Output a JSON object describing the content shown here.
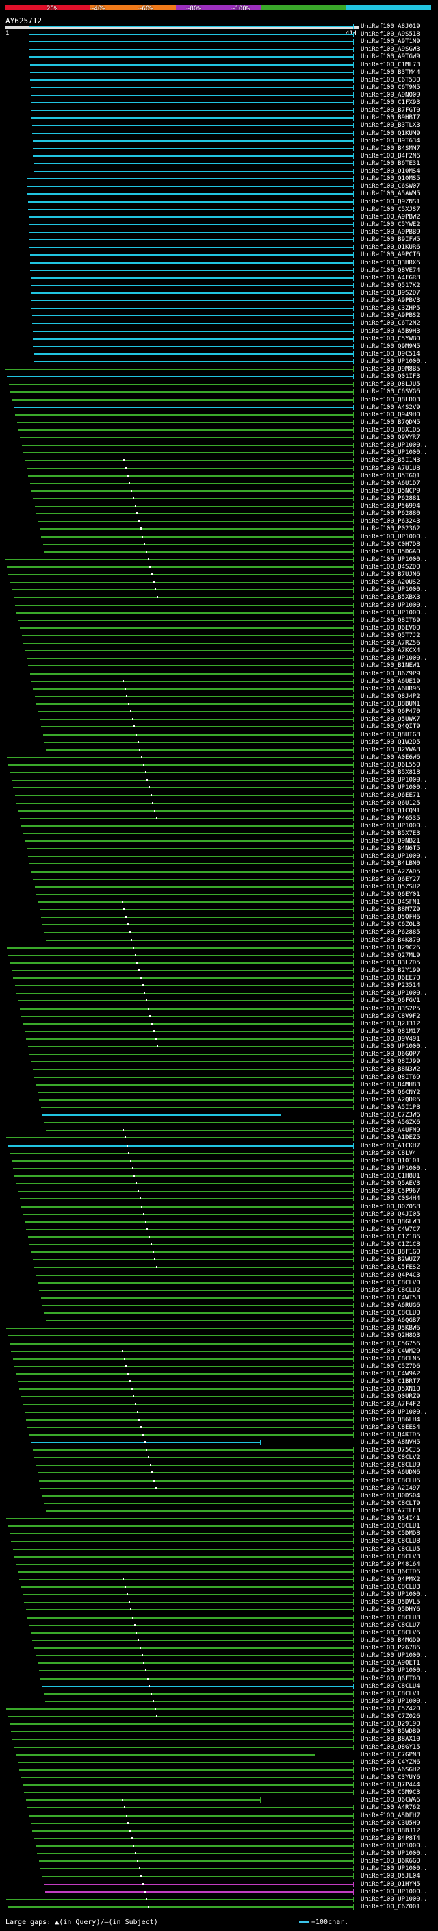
{
  "legend": {
    "segments": [
      {
        "color": "#e0102a"
      },
      {
        "color": "#f07a1a"
      },
      {
        "color": "#9c2fbf"
      },
      {
        "color": "#3aa82a"
      },
      {
        "color": "#21c4e0"
      }
    ],
    "labels": [
      "20%",
      "~40%",
      "~60%",
      "~80%",
      "~100%"
    ]
  },
  "query": {
    "id": "AY625712",
    "start": "1",
    "end": "414"
  },
  "footer": {
    "large_gaps": "Large gaps: ▲(in Query)/—(in Subject)",
    "scale": "=100char."
  },
  "hits": [
    "UniRef100_A8J019",
    "UniRef100_A9S518",
    "UniRef100_A9T1N9",
    "UniRef100_A9SGW3",
    "UniRef100_A9TGW9",
    "UniRef100_C1ML73",
    "UniRef100_B3TM44",
    "UniRef100_C6T530",
    "UniRef100_C6T9N5",
    "UniRef100_A9NQ09",
    "UniRef100_C1FX93",
    "UniRef100_B7FGT0",
    "UniRef100_B9HBT7",
    "UniRef100_B3TLX3",
    "UniRef100_Q1KUM9",
    "UniRef100_B9T634",
    "UniRef100_B4SMM7",
    "UniRef100_B4F2N6",
    "UniRef100_B6TE31",
    "UniRef100_Q10MS4",
    "UniRef100_Q10MS5",
    "UniRef100_C6SW07",
    "UniRef100_A5AWM5",
    "UniRef100_Q9ZNS1",
    "UniRef100_C5XJS7",
    "UniRef100_A9PBW2",
    "UniRef100_C5YWE2",
    "UniRef100_A9PBB9",
    "UniRef100_B9IFW5",
    "UniRef100_Q1KUR6",
    "UniRef100_A9PCT6",
    "UniRef100_Q3HRX6",
    "UniRef100_Q8VE74",
    "UniRef100_A4FGR8",
    "UniRef100_Q517K2",
    "UniRef100_B9S2D7",
    "UniRef100_A9PBV3",
    "UniRef100_C3ZHP5",
    "UniRef100_A9PBS2",
    "UniRef100_C6T2N2",
    "UniRef100_A5B9H3",
    "UniRef100_C5YWB0",
    "UniRef100_Q9M9M5",
    "UniRef100_Q9C514",
    "UniRef100_UP1000..",
    "UniRef100_Q9M8B5",
    "UniRef100_Q01IF3",
    "UniRef100_Q8LJU5",
    "UniRef100_C6SVG6",
    "UniRef100_Q8LDQ3",
    "UniRef100_A4S2V9",
    "UniRef100_Q949H0",
    "UniRef100_B7QDM5",
    "UniRef100_Q8X1Q5",
    "UniRef100_Q9VYR7",
    "UniRef100_UP1000..",
    "UniRef100_UP1000..",
    "UniRef100_B5I1M3",
    "UniRef100_A7U1U8",
    "UniRef100_B5TGQ1",
    "UniRef100_A6U1D7",
    "UniRef100_B5NCP9",
    "UniRef100_P62881",
    "UniRef100_P56994",
    "UniRef100_P62880",
    "UniRef100_P63243",
    "UniRef100_P02362",
    "UniRef100_UP1000..",
    "UniRef100_C0H7D8",
    "UniRef100_B5DGA0",
    "UniRef100_UP1000..",
    "UniRef100_Q4SZD0",
    "UniRef100_B7UJN6",
    "UniRef100_A2QUS2",
    "UniRef100_UP1000..",
    "UniRef100_B5XBX3",
    "UniRef100_UP1000..",
    "UniRef100_UP1000..",
    "UniRef100_Q8IT69",
    "UniRef100_Q6EV00",
    "UniRef100_Q5T7J2",
    "UniRef100_A7RZ56",
    "UniRef100_A7KCX4",
    "UniRef100_UP1000..",
    "UniRef100_B1NEW1",
    "UniRef100_B6Z9P9",
    "UniRef100_A6UE19",
    "UniRef100_A6UR96",
    "UniRef100_Q8J4P2",
    "UniRef100_B8BUN1",
    "UniRef100_Q6P470",
    "UniRef100_Q5UWK7",
    "UniRef100_Q4QIT9",
    "UniRef100_Q8UIG8",
    "UniRef100_Q1W2D5",
    "UniRef100_B2VWA8",
    "UniRef100_A0E6W6",
    "UniRef100_Q6L550",
    "UniRef100_B5X818",
    "UniRef100_UP1000..",
    "UniRef100_UP1000..",
    "UniRef100_Q6EE71",
    "UniRef100_Q6U125",
    "UniRef100_Q1CQM1",
    "UniRef100_P46535",
    "UniRef100_UP1000..",
    "UniRef100_B5X7E3",
    "UniRef100_Q9NB21",
    "UniRef100_B4N6T5",
    "UniRef100_UP1000..",
    "UniRef100_B4LBN0",
    "UniRef100_A2ZAD5",
    "UniRef100_Q6EY27",
    "UniRef100_Q5ZSU2",
    "UniRef100_Q6EY01",
    "UniRef100_Q4SFN1",
    "UniRef100_B8M7Z9",
    "UniRef100_Q5QFH6",
    "UniRef100_C6ZOL3",
    "UniRef100_P62885",
    "UniRef100_B4K870",
    "UniRef100_Q29C26",
    "UniRef100_Q27ML9",
    "UniRef100_B3LZD5",
    "UniRef100_B2Y199",
    "UniRef100_Q6EE70",
    "UniRef100_P23514",
    "UniRef100_UP1000..",
    "UniRef100_Q6FGV1",
    "UniRef100_B3S2P5",
    "UniRef100_C8V9F2",
    "UniRef100_Q2J312",
    "UniRef100_Q81M17",
    "UniRef100_Q9V491",
    "UniRef100_UP1000..",
    "UniRef100_Q6GQP7",
    "UniRef100_Q8IJ99",
    "UniRef100_B8N3W2",
    "UniRef100_Q8IT69",
    "UniRef100_B4MH83",
    "UniRef100_Q6CNY2",
    "UniRef100_A2QDR6",
    "UniRef100_A5I1P8",
    "UniRef100_C7Z3W6",
    "UniRef100_A5GZK6",
    "UniRef100_A4UFN9",
    "UniRef100_A1DEZ5",
    "UniRef100_A1CKH7",
    "UniRef100_C8LV4",
    "UniRef100_Q10101",
    "UniRef100_UP1000..",
    "UniRef100_C1H8U1",
    "UniRef100_Q5AEV3",
    "UniRef100_C5P967",
    "UniRef100_C0S4H4",
    "UniRef100_B0Z0S8",
    "UniRef100_Q4JI05",
    "UniRef100_Q8GLW3",
    "UniRef100_C4W7C7",
    "UniRef100_C1Z1B6",
    "UniRef100_C1Z1C8",
    "UniRef100_B8F1G0",
    "UniRef100_B2WUZ7",
    "UniRef100_C5FES2",
    "UniRef100_Q4P4C3",
    "UniRef100_C8CLV0",
    "UniRef100_C8CLU2",
    "UniRef100_C4WT58",
    "UniRef100_A6RUG6",
    "UniRef100_C8CLU0",
    "UniRef100_A6QGB7",
    "UniRef100_Q5KBW6",
    "UniRef100_Q2H8Q3",
    "UniRef100_C5G756",
    "UniRef100_C4WM29",
    "UniRef100_C8CLN5",
    "UniRef100_C5Z7D6",
    "UniRef100_C4W9A2",
    "UniRef100_C1BRT7",
    "UniRef100_Q5XN10",
    "UniRef100_Q0URZ9",
    "UniRef100_A7F4F2",
    "UniRef100_UP1000..",
    "UniRef100_Q86LH4",
    "UniRef100_C8EES4",
    "UniRef100_Q4KTD5",
    "UniRef100_A8NVH5",
    "UniRef100_Q75CJ5",
    "UniRef100_C8CLV2",
    "UniRef100_C8CLU9",
    "UniRef100_A6UDN6",
    "UniRef100_C8CLU6",
    "UniRef100_A2I497",
    "UniRef100_B0DS04",
    "UniRef100_C8CLT9",
    "UniRef100_A7TLF8",
    "UniRef100_Q54I41",
    "UniRef100_C8CLU1",
    "UniRef100_C5DMD8",
    "UniRef100_C8CLU8",
    "UniRef100_C8CLU5",
    "UniRef100_C8CLV3",
    "UniRef100_P48164",
    "UniRef100_Q6CTD6",
    "UniRef100_Q4PMX2",
    "UniRef100_C8CLU3",
    "UniRef100_UP1000..",
    "UniRef100_Q5DVL5",
    "UniRef100_Q5DHY6",
    "UniRef100_C8CLU8",
    "UniRef100_C8CLU7",
    "UniRef100_C8CLV6",
    "UniRef100_B4MGD9",
    "UniRef100_P26786",
    "UniRef100_UP1000..",
    "UniRef100_A9QET1",
    "UniRef100_UP1000..",
    "UniRef100_Q6FT00",
    "UniRef100_C8CLU4",
    "UniRef100_C8CLV1",
    "UniRef100_UP1000..",
    "UniRef100_C5Z420",
    "UniRef100_C7Z026",
    "UniRef100_Q29190",
    "UniRef100_B5WDB9",
    "UniRef100_B8AX10",
    "UniRef100_Q8GY15",
    "UniRef100_C7GPN8",
    "UniRef100_C4YZN6",
    "UniRef100_A6SGH2",
    "UniRef100_C3YUY6",
    "UniRef100_Q7P444",
    "UniRef100_C5M9C3",
    "UniRef100_Q6CWA6",
    "UniRef100_A4R762",
    "UniRef100_A5DFH7",
    "UniRef100_C3U5H9",
    "UniRef100_B8BJ12",
    "UniRef100_B4P8T4",
    "UniRef100_UP1000..",
    "UniRef100_UP1000..",
    "UniRef100_B6K6G0",
    "UniRef100_UP1000..",
    "UniRef100_Q5JL04",
    "UniRef100_Q1HYM5",
    "UniRef100_UP1000..",
    "UniRef100_UP1000..",
    "UniRef100_C6Z001"
  ]
}
